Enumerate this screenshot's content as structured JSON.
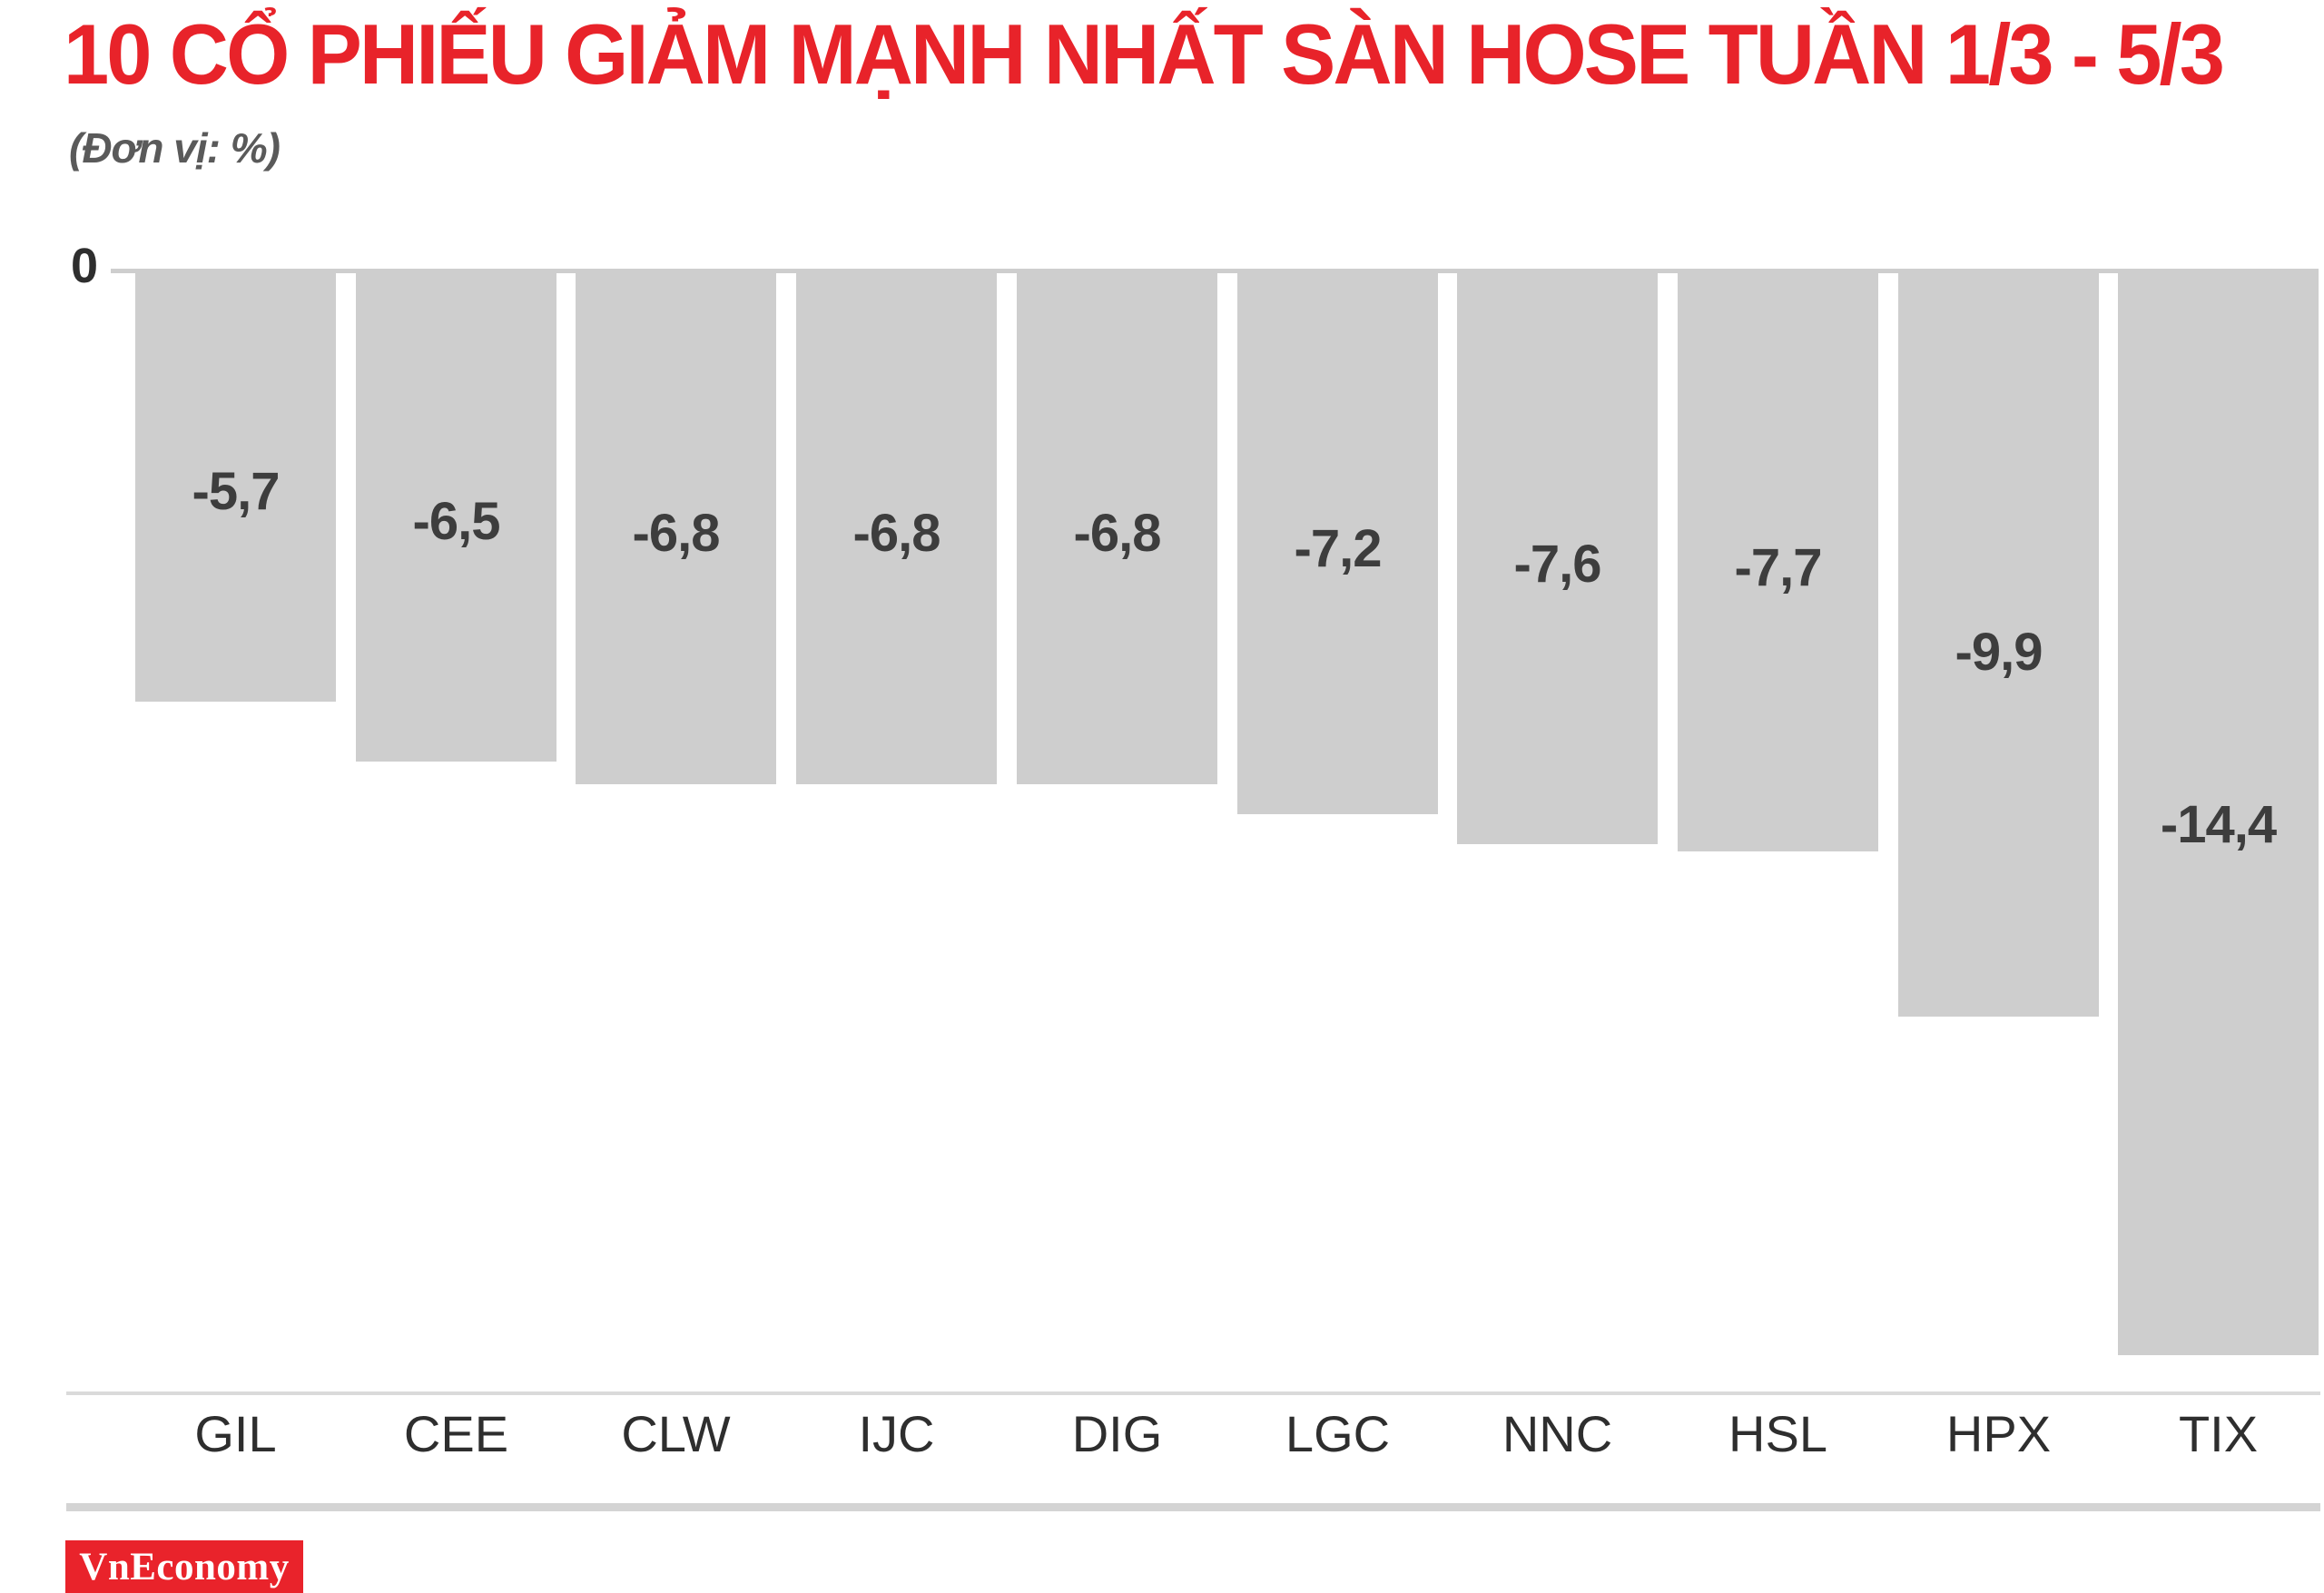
{
  "header": {
    "title": "10 CỔ PHIẾU GIẢM MẠNH NHẤT SÀN HOSE TUẦN 1/3 - 5/3",
    "unit_note": "(Đơn vị: %)"
  },
  "chart_data": {
    "type": "bar",
    "title": "10 CỔ PHIẾU GIẢM MẠNH NHẤT SÀN HOSE TUẦN 1/3 - 5/3",
    "subtitle": "(Đơn vị: %)",
    "unit": "%",
    "orientation": "vertical",
    "categories": [
      "GIL",
      "CEE",
      "CLW",
      "IJC",
      "DIG",
      "LGC",
      "NNC",
      "HSL",
      "HPX",
      "TIX"
    ],
    "values": [
      -5.7,
      -6.5,
      -6.8,
      -6.8,
      -6.8,
      -7.2,
      -7.6,
      -7.7,
      -9.9,
      -14.4
    ],
    "value_labels": [
      "-5,7",
      "-6,5",
      "-6,8",
      "-6,8",
      "-6,8",
      "-7,2",
      "-7,6",
      "-7,7",
      "-9,9",
      "-14,4"
    ],
    "xlabel": "",
    "ylabel": "",
    "ylim": [
      -14.4,
      0
    ],
    "y_axis_ticks": [
      "0"
    ],
    "grid": false,
    "legend": false,
    "bar_color": "#cecece",
    "value_label_position": "inside-middle"
  },
  "axis": {
    "zero_label": "0"
  },
  "footer": {
    "brand": "VnEconomy"
  },
  "colors": {
    "accent_red": "#e8232a",
    "logo_bg": "#e9232b",
    "logo_text": "#ffffff",
    "bar": "#cecece",
    "value_text": "#3d3d3d",
    "tick_text": "#2e2e2e",
    "subtitle_text": "#5a5a5a",
    "axis_rule": "#d4d4d4"
  }
}
